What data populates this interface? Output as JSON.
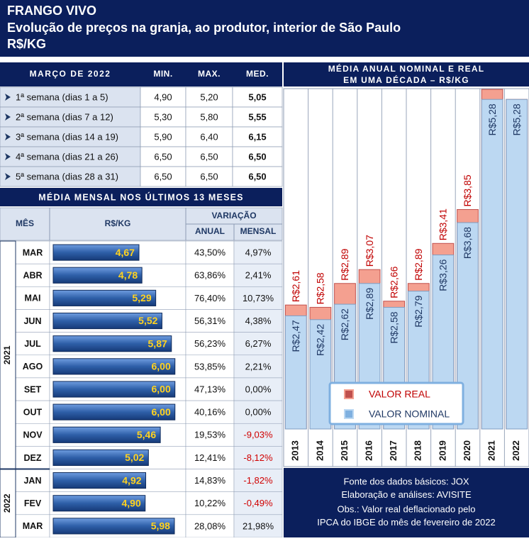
{
  "header": {
    "title": "FRANGO VIVO",
    "subtitle": "Evolução de preços na granja, ao produtor, interior de São Paulo",
    "unit": "R$/KG"
  },
  "weekly_table": {
    "columns": [
      "MARÇO DE 2022",
      "MIN.",
      "MAX.",
      "MED."
    ],
    "rows": [
      [
        "1ª semana (dias 1 a 5)",
        "4,90",
        "5,20",
        "5,05"
      ],
      [
        "2ª semana (dias 7 a 12)",
        "5,30",
        "5,80",
        "5,55"
      ],
      [
        "3ª semana (dias 14 a 19)",
        "5,90",
        "6,40",
        "6,15"
      ],
      [
        "4ª semana (dias 21 a 26)",
        "6,50",
        "6,50",
        "6,50"
      ],
      [
        "5ª semana (dias 28 a 31)",
        "6,50",
        "6,50",
        "6,50"
      ]
    ]
  },
  "monthly_table": {
    "title": "MÉDIA MENSAL NOS ÚLTIMOS 13 MESES",
    "columns": {
      "month": "MÊS",
      "price": "R$/KG",
      "variation": "VARIAÇÃO",
      "annual": "ANUAL",
      "monthly": "MENSAL"
    },
    "years": [
      "2021",
      "2022"
    ],
    "annual": [
      "43,50%",
      "63,86%",
      "76,40%",
      "56,31%",
      "56,23%",
      "53,85%",
      "47,13%",
      "40,16%",
      "19,53%",
      "12,41%",
      "14,83%",
      "10,22%",
      "28,08%"
    ],
    "monthly": [
      "4,97%",
      "2,41%",
      "10,73%",
      "4,38%",
      "6,27%",
      "2,21%",
      "0,00%",
      "0,00%",
      "-9,03%",
      "-8,12%",
      "-1,82%",
      "-0,49%",
      "21,98%"
    ]
  },
  "chart_data": [
    {
      "type": "hbar",
      "categories": [
        "MAR",
        "ABR",
        "MAI",
        "JUN",
        "JUL",
        "AGO",
        "SET",
        "OUT",
        "NOV",
        "DEZ",
        "JAN",
        "FEV",
        "MAR"
      ],
      "values": [
        4.67,
        4.78,
        5.29,
        5.52,
        5.87,
        6.0,
        6.0,
        6.0,
        5.46,
        5.02,
        4.92,
        4.9,
        5.98
      ],
      "value_labels": [
        "4,67",
        "4,78",
        "5,29",
        "5,52",
        "5,87",
        "6,00",
        "6,00",
        "6,00",
        "5,46",
        "5,02",
        "4,92",
        "4,90",
        "5,98"
      ],
      "xlim": [
        1.5,
        6.4
      ],
      "color": "#2e5fa8"
    },
    {
      "type": "overlap_bar",
      "title_lines": [
        "MÉDIA ANUAL NOMINAL E REAL",
        "EM UMA DÉCADA – R$/KG"
      ],
      "categories": [
        "2013",
        "2014",
        "2015",
        "2016",
        "2017",
        "2018",
        "2019",
        "2020",
        "2021",
        "2022"
      ],
      "series": [
        {
          "name": "VALOR REAL",
          "color": "#f4a090",
          "values": [
            2.61,
            2.58,
            2.89,
            3.07,
            2.66,
            2.89,
            3.41,
            3.85,
            5.41,
            5.28
          ],
          "value_labels": [
            "R$2,61",
            "R$2,58",
            "R$2,89",
            "R$3,07",
            "R$2,66",
            "R$2,89",
            "R$3,41",
            "R$3,85",
            null,
            null
          ]
        },
        {
          "name": "VALOR NOMINAL",
          "color": "#bcd8f2",
          "values": [
            2.47,
            2.42,
            2.62,
            2.89,
            2.58,
            2.79,
            3.26,
            3.68,
            5.28,
            5.28
          ],
          "value_labels": [
            "R$2,47",
            "R$2,42",
            "R$2,62",
            "R$2,89",
            "R$2,58",
            "R$2,79",
            "R$3,26",
            "R$3,68",
            "R$5,28",
            "R$5,28"
          ]
        }
      ],
      "ylim": [
        1,
        5.42
      ]
    }
  ],
  "footer": [
    "Fonte dos dados básicos: JOX",
    "Elaboração e análises: AVISITE",
    "Obs.: Valor real deflacionado pelo",
    "IPCA do IBGE do mês de fevereiro de 2022"
  ]
}
